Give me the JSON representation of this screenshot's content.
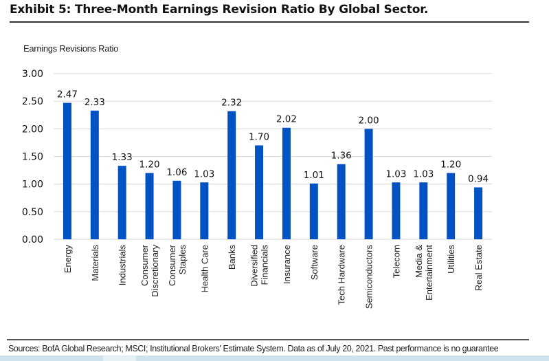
{
  "exhibit_title": "Exhibit 5: Three-Month Earnings Revision Ratio By Global Sector.",
  "source_note": "Sources: BofA Global Research; MSCI; Institutional Brokers' Estimate System. Data as of July 20, 2021. Past performance is no guarantee",
  "colors": {
    "bar": "#0352c4",
    "grid": "#dddddd",
    "text": "#222222"
  },
  "chart_data": {
    "type": "bar",
    "title": "Three-Month Earnings Revision Ratio By Global Sector",
    "xlabel": "",
    "ylabel": "Earnings Revisions Ratio",
    "ylim": [
      0,
      3
    ],
    "yticks": [
      "0.00",
      "0.50",
      "1.00",
      "1.50",
      "2.00",
      "2.50",
      "3.00"
    ],
    "grid": true,
    "legend": "none",
    "categories": [
      [
        "Energy"
      ],
      [
        "Materials"
      ],
      [
        "Industrials"
      ],
      [
        "Consumer",
        "Discretionary"
      ],
      [
        "Consumer",
        "Staples"
      ],
      [
        "Health Care"
      ],
      [
        "Banks"
      ],
      [
        "Diversified",
        "Financials"
      ],
      [
        "Insurance"
      ],
      [
        "Software"
      ],
      [
        "Tech Hardware"
      ],
      [
        "Semiconductors"
      ],
      [
        "Telecom"
      ],
      [
        "Media &",
        "Entertainment"
      ],
      [
        "Utilities"
      ],
      [
        "Real Estate"
      ]
    ],
    "values": [
      2.47,
      2.33,
      1.33,
      1.2,
      1.06,
      1.03,
      2.32,
      1.7,
      2.02,
      1.01,
      1.36,
      2.0,
      1.03,
      1.03,
      1.2,
      0.94
    ],
    "value_labels": [
      "2.47",
      "2.33",
      "1.33",
      "1.20",
      "1.06",
      "1.03",
      "2.32",
      "1.70",
      "2.02",
      "1.01",
      "1.36",
      "2.00",
      "1.03",
      "1.03",
      "1.20",
      "0.94"
    ]
  }
}
